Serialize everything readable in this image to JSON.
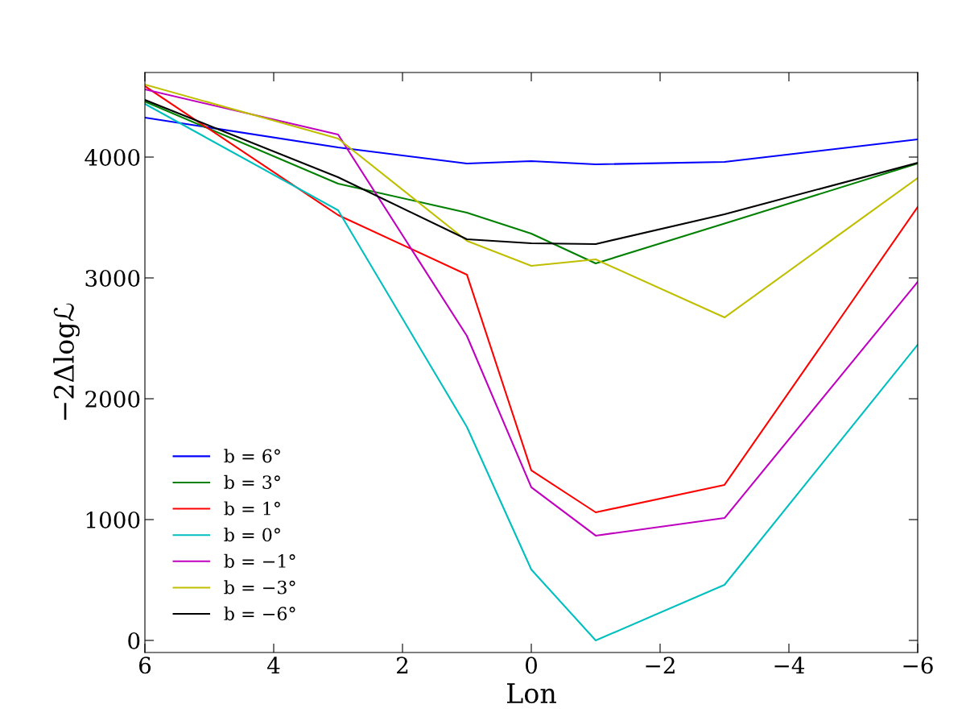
{
  "chart_data": {
    "type": "line",
    "xlabel": "Lon",
    "ylabel": "−2Δlogℒ",
    "x": [
      6,
      3,
      1,
      0,
      -1,
      -3,
      -6
    ],
    "xlim": [
      6,
      -6
    ],
    "xticks": [
      6,
      4,
      2,
      0,
      -2,
      -4,
      -6
    ],
    "ylim": [
      -100,
      4700
    ],
    "yticks": [
      0,
      1000,
      2000,
      3000,
      4000
    ],
    "grid": false,
    "legend": "bottom left",
    "line_style": "solid",
    "marker": "none",
    "series": [
      {
        "name": "b = 6°",
        "color": "#0000ff",
        "values": [
          4327,
          4080,
          3947,
          3967,
          3940,
          3960,
          4147
        ]
      },
      {
        "name": "b = 3°",
        "color": "#008000",
        "values": [
          4460,
          3780,
          3540,
          3367,
          3120,
          3450,
          3947
        ]
      },
      {
        "name": "b = 1°",
        "color": "#ff0000",
        "values": [
          4587,
          3520,
          3027,
          1407,
          1060,
          1287,
          3587
        ]
      },
      {
        "name": "b = 0°",
        "color": "#00bfbf",
        "values": [
          4440,
          3560,
          1767,
          587,
          0,
          460,
          2447
        ]
      },
      {
        "name": "b = −1°",
        "color": "#bf00bf",
        "values": [
          4560,
          4187,
          2520,
          1267,
          867,
          1013,
          2967
        ]
      },
      {
        "name": "b = −3°",
        "color": "#bfbf00",
        "values": [
          4600,
          4153,
          3307,
          3100,
          3153,
          2673,
          3827
        ]
      },
      {
        "name": "b = −6°",
        "color": "#000000",
        "values": [
          4473,
          3833,
          3320,
          3287,
          3280,
          3527,
          3953
        ]
      }
    ]
  }
}
